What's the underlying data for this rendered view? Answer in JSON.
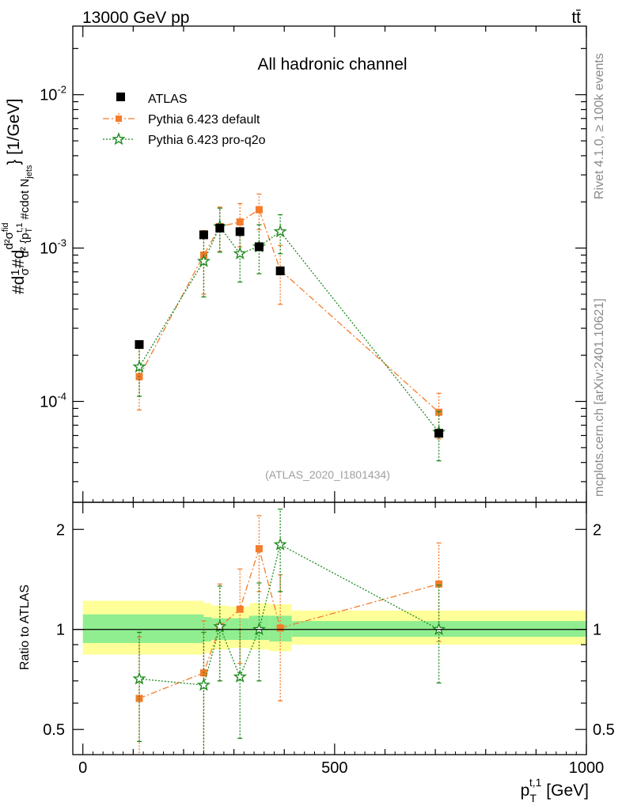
{
  "header": {
    "left": "13000 GeV pp",
    "right": "tt̄"
  },
  "side_text": {
    "top": "Rivet 4.1.0, ≥ 100k events",
    "bottom": "mcplots.cern.ch [arXiv:2401.10621]"
  },
  "chart_data": [
    {
      "type": "scatter",
      "title": "All hadronic channel",
      "watermark": "(ATLAS_2020_I1801434)",
      "ylabel": "#d\\frac{1}{σ}#d\\frac{d^2σ^{fid}}{d^2 {p_T^{t,1} #cdot N_{jets}}} [1/GeV]",
      "xlim": [
        -20,
        1000
      ],
      "ylim": [
        2.2e-05,
        0.028
      ],
      "yscale": "log",
      "yticks": [
        {
          "value": 0.0001,
          "label": "10^-4"
        },
        {
          "value": 0.001,
          "label": "10^-3"
        },
        {
          "value": 0.01,
          "label": "10^-2"
        }
      ],
      "legend": {
        "position": "top-left"
      },
      "series": [
        {
          "name": "ATLAS",
          "color": "#000000",
          "marker": "square",
          "points": [
            {
              "x": 112,
              "y": 0.000235,
              "xlo": 112,
              "xhi": 112
            },
            {
              "x": 240,
              "y": 0.00122,
              "xlo": 240,
              "xhi": 240
            },
            {
              "x": 272,
              "y": 0.00135,
              "xlo": 272,
              "xhi": 272
            },
            {
              "x": 312,
              "y": 0.00128,
              "xlo": 312,
              "xhi": 312
            },
            {
              "x": 350,
              "y": 0.00102,
              "xlo": 350,
              "xhi": 350
            },
            {
              "x": 392,
              "y": 0.00071,
              "xlo": 392,
              "xhi": 392
            },
            {
              "x": 707,
              "y": 6.2e-05,
              "xlo": 707,
              "xhi": 707
            }
          ]
        },
        {
          "name": "Pythia 6.423 default",
          "color": "#f47c2c",
          "marker": "square",
          "dash": "8,3,2,3",
          "points": [
            {
              "x": 112,
              "y": 0.000145,
              "ylo": 8.8e-05,
              "yhi": 0.000245
            },
            {
              "x": 240,
              "y": 0.0009,
              "ylo": 0.0005,
              "yhi": 0.0013
            },
            {
              "x": 272,
              "y": 0.00138,
              "ylo": 0.00095,
              "yhi": 0.00185
            },
            {
              "x": 312,
              "y": 0.00148,
              "ylo": 0.00102,
              "yhi": 0.00195
            },
            {
              "x": 350,
              "y": 0.00178,
              "ylo": 0.00132,
              "yhi": 0.00225
            },
            {
              "x": 392,
              "y": 0.00072,
              "ylo": 0.00043,
              "yhi": 0.00104
            },
            {
              "x": 707,
              "y": 8.5e-05,
              "ylo": 5.7e-05,
              "yhi": 0.000113
            }
          ]
        },
        {
          "name": "Pythia 6.423 pro-q2o",
          "color": "#1e8a1e",
          "marker": "star",
          "dash": "2,2",
          "points": [
            {
              "x": 112,
              "y": 0.000168,
              "ylo": 0.000108,
              "yhi": 0.000232
            },
            {
              "x": 240,
              "y": 0.00082,
              "ylo": 0.00048,
              "yhi": 0.00118
            },
            {
              "x": 272,
              "y": 0.00138,
              "ylo": 0.00094,
              "yhi": 0.00182
            },
            {
              "x": 312,
              "y": 0.00092,
              "ylo": 0.0006,
              "yhi": 0.00128
            },
            {
              "x": 350,
              "y": 0.00102,
              "ylo": 0.00068,
              "yhi": 0.00142
            },
            {
              "x": 392,
              "y": 0.00128,
              "ylo": 0.00092,
              "yhi": 0.00165
            },
            {
              "x": 707,
              "y": 6.3e-05,
              "ylo": 4.1e-05,
              "yhi": 8.6e-05
            }
          ]
        }
      ]
    },
    {
      "type": "scatter",
      "title": "",
      "xlabel": "p_T^{t,1} [GeV]",
      "ylabel": "Ratio to ATLAS",
      "xlim": [
        -20,
        1000
      ],
      "ylim": [
        0.42,
        2.4
      ],
      "yscale": "log",
      "yticks": [
        {
          "value": 0.5,
          "label": "0.5"
        },
        {
          "value": 1,
          "label": "1"
        },
        {
          "value": 2,
          "label": "2"
        }
      ],
      "xticks": [
        {
          "value": 0,
          "label": "0"
        },
        {
          "value": 500,
          "label": "500"
        },
        {
          "value": 1000,
          "label": "1000"
        }
      ],
      "bands": [
        {
          "x0": 0,
          "x1": 240,
          "inner": [
            0.91,
            1.11
          ],
          "outer": [
            0.84,
            1.22
          ]
        },
        {
          "x0": 240,
          "x1": 255,
          "inner": [
            0.92,
            1.09
          ],
          "outer": [
            0.85,
            1.2
          ]
        },
        {
          "x0": 255,
          "x1": 290,
          "inner": [
            0.93,
            1.08
          ],
          "outer": [
            0.87,
            1.18
          ]
        },
        {
          "x0": 290,
          "x1": 330,
          "inner": [
            0.93,
            1.08
          ],
          "outer": [
            0.88,
            1.17
          ]
        },
        {
          "x0": 330,
          "x1": 370,
          "inner": [
            0.93,
            1.1
          ],
          "outer": [
            0.87,
            1.2
          ]
        },
        {
          "x0": 370,
          "x1": 415,
          "inner": [
            0.92,
            1.1
          ],
          "outer": [
            0.86,
            1.19
          ]
        },
        {
          "x0": 415,
          "x1": 1000,
          "inner": [
            0.95,
            1.06
          ],
          "outer": [
            0.9,
            1.14
          ]
        }
      ],
      "series": [
        {
          "name": "Pythia 6.423 default",
          "color": "#f47c2c",
          "marker": "square",
          "dash": "8,3,2,3",
          "points": [
            {
              "x": 112,
              "y": 0.62,
              "ylo": 0.38,
              "yhi": 0.95
            },
            {
              "x": 240,
              "y": 0.74,
              "ylo": 0.42,
              "yhi": 1.06
            },
            {
              "x": 272,
              "y": 1.02,
              "ylo": 0.7,
              "yhi": 1.37
            },
            {
              "x": 312,
              "y": 1.15,
              "ylo": 0.79,
              "yhi": 1.52
            },
            {
              "x": 350,
              "y": 1.75,
              "ylo": 1.3,
              "yhi": 2.2
            },
            {
              "x": 392,
              "y": 1.01,
              "ylo": 0.61,
              "yhi": 1.46
            },
            {
              "x": 707,
              "y": 1.37,
              "ylo": 0.92,
              "yhi": 1.82
            }
          ]
        },
        {
          "name": "Pythia 6.423 pro-q2o",
          "color": "#1e8a1e",
          "marker": "star",
          "dash": "2,2",
          "points": [
            {
              "x": 112,
              "y": 0.71,
              "ylo": 0.46,
              "yhi": 0.98
            },
            {
              "x": 240,
              "y": 0.68,
              "ylo": 0.4,
              "yhi": 0.98
            },
            {
              "x": 272,
              "y": 1.02,
              "ylo": 0.7,
              "yhi": 1.35
            },
            {
              "x": 312,
              "y": 0.72,
              "ylo": 0.47,
              "yhi": 1.0
            },
            {
              "x": 350,
              "y": 1.0,
              "ylo": 0.7,
              "yhi": 1.38
            },
            {
              "x": 392,
              "y": 1.8,
              "ylo": 1.3,
              "yhi": 2.3
            },
            {
              "x": 707,
              "y": 1.0,
              "ylo": 0.69,
              "yhi": 1.36
            }
          ]
        }
      ]
    }
  ]
}
